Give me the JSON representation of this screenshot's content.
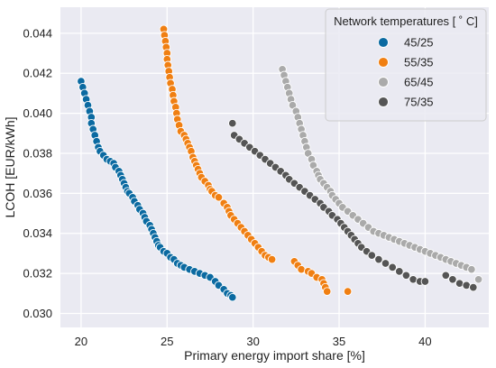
{
  "chart_data": {
    "type": "scatter",
    "title": "",
    "xlabel": "Primary energy import share [%]",
    "ylabel": "LCOH [EUR/kWh]",
    "xlim": [
      18.8,
      43.7
    ],
    "ylim": [
      0.0293,
      0.0453
    ],
    "xticks": [
      20,
      25,
      30,
      35,
      40
    ],
    "yticks": [
      0.03,
      0.032,
      0.034,
      0.036,
      0.038,
      0.04,
      0.042,
      0.044
    ],
    "xtick_labels": [
      "20",
      "25",
      "30",
      "35",
      "40"
    ],
    "ytick_labels": [
      "0.030",
      "0.032",
      "0.034",
      "0.036",
      "0.038",
      "0.040",
      "0.042",
      "0.044"
    ],
    "grid": true,
    "background": "#EAEAF2",
    "legend": {
      "title": "Network temperatures [$^\\circ$C]",
      "title_display": "Network temperatures [ ˚ C]",
      "placement": "top-right"
    },
    "series": [
      {
        "name": "45/25",
        "color": "#0B6AA1",
        "points": [
          [
            20.0,
            0.0416
          ],
          [
            20.1,
            0.0413
          ],
          [
            20.2,
            0.041
          ],
          [
            20.3,
            0.0407
          ],
          [
            20.4,
            0.0404
          ],
          [
            20.5,
            0.0401
          ],
          [
            20.6,
            0.0398
          ],
          [
            20.6,
            0.0395
          ],
          [
            20.7,
            0.0392
          ],
          [
            20.8,
            0.0389
          ],
          [
            20.9,
            0.0386
          ],
          [
            21.0,
            0.0383
          ],
          [
            21.1,
            0.0381
          ],
          [
            21.3,
            0.0379
          ],
          [
            21.5,
            0.0377
          ],
          [
            21.7,
            0.0376
          ],
          [
            21.9,
            0.0375
          ],
          [
            22.0,
            0.0373
          ],
          [
            22.2,
            0.0371
          ],
          [
            22.3,
            0.0369
          ],
          [
            22.4,
            0.0367
          ],
          [
            22.5,
            0.0365
          ],
          [
            22.6,
            0.0363
          ],
          [
            22.7,
            0.0361
          ],
          [
            22.8,
            0.036
          ],
          [
            23.0,
            0.0358
          ],
          [
            23.1,
            0.0356
          ],
          [
            23.3,
            0.0354
          ],
          [
            23.4,
            0.0352
          ],
          [
            23.6,
            0.035
          ],
          [
            23.7,
            0.0348
          ],
          [
            23.8,
            0.0346
          ],
          [
            24.0,
            0.0344
          ],
          [
            24.1,
            0.0342
          ],
          [
            24.2,
            0.034
          ],
          [
            24.3,
            0.0338
          ],
          [
            24.4,
            0.0336
          ],
          [
            24.5,
            0.0334
          ],
          [
            24.6,
            0.0333
          ],
          [
            24.8,
            0.0331
          ],
          [
            25.0,
            0.033
          ],
          [
            25.2,
            0.0328
          ],
          [
            25.4,
            0.0327
          ],
          [
            25.6,
            0.0325
          ],
          [
            25.8,
            0.0324
          ],
          [
            26.0,
            0.0323
          ],
          [
            26.3,
            0.0322
          ],
          [
            26.6,
            0.0321
          ],
          [
            26.9,
            0.032
          ],
          [
            27.2,
            0.0319
          ],
          [
            27.5,
            0.0318
          ],
          [
            27.8,
            0.0316
          ],
          [
            28.0,
            0.0314
          ],
          [
            28.3,
            0.0312
          ],
          [
            28.5,
            0.031
          ],
          [
            28.7,
            0.0309
          ],
          [
            28.8,
            0.0308
          ]
        ]
      },
      {
        "name": "55/35",
        "color": "#F07F12",
        "points": [
          [
            24.8,
            0.0442
          ],
          [
            24.85,
            0.0439
          ],
          [
            24.9,
            0.0436
          ],
          [
            24.95,
            0.0433
          ],
          [
            25.0,
            0.043
          ],
          [
            25.0,
            0.0427
          ],
          [
            25.05,
            0.0424
          ],
          [
            25.1,
            0.0421
          ],
          [
            25.15,
            0.0418
          ],
          [
            25.2,
            0.0415
          ],
          [
            25.3,
            0.0412
          ],
          [
            25.35,
            0.0409
          ],
          [
            25.4,
            0.0406
          ],
          [
            25.5,
            0.0403
          ],
          [
            25.55,
            0.04
          ],
          [
            25.6,
            0.0397
          ],
          [
            25.7,
            0.0394
          ],
          [
            25.8,
            0.0391
          ],
          [
            26.0,
            0.0389
          ],
          [
            26.1,
            0.0387
          ],
          [
            26.2,
            0.0385
          ],
          [
            26.3,
            0.0383
          ],
          [
            26.4,
            0.0381
          ],
          [
            26.5,
            0.0378
          ],
          [
            26.6,
            0.0376
          ],
          [
            26.7,
            0.0374
          ],
          [
            26.8,
            0.0372
          ],
          [
            26.9,
            0.037
          ],
          [
            27.0,
            0.0368
          ],
          [
            27.2,
            0.0366
          ],
          [
            27.4,
            0.0364
          ],
          [
            27.5,
            0.0362
          ],
          [
            27.6,
            0.0361
          ],
          [
            27.8,
            0.0359
          ],
          [
            28.0,
            0.0358
          ],
          [
            28.3,
            0.0355
          ],
          [
            28.5,
            0.0353
          ],
          [
            28.6,
            0.0351
          ],
          [
            28.7,
            0.0349
          ],
          [
            28.9,
            0.0347
          ],
          [
            29.1,
            0.0345
          ],
          [
            29.3,
            0.0343
          ],
          [
            29.5,
            0.0341
          ],
          [
            29.7,
            0.0339
          ],
          [
            29.9,
            0.0337
          ],
          [
            30.1,
            0.0335
          ],
          [
            30.3,
            0.0333
          ],
          [
            30.5,
            0.0331
          ],
          [
            30.7,
            0.0329
          ],
          [
            30.9,
            0.0328
          ],
          [
            31.1,
            0.0327
          ],
          [
            32.4,
            0.0326
          ],
          [
            32.6,
            0.0324
          ],
          [
            32.8,
            0.0322
          ],
          [
            33.2,
            0.0321
          ],
          [
            33.4,
            0.032
          ],
          [
            33.7,
            0.0318
          ],
          [
            34.0,
            0.0317
          ],
          [
            34.1,
            0.0315
          ],
          [
            34.2,
            0.0313
          ],
          [
            34.3,
            0.0311
          ],
          [
            35.5,
            0.0311
          ]
        ]
      },
      {
        "name": "65/45",
        "color": "#AAAAAA",
        "points": [
          [
            31.7,
            0.0422
          ],
          [
            31.8,
            0.0419
          ],
          [
            31.9,
            0.0416
          ],
          [
            32.0,
            0.0413
          ],
          [
            32.1,
            0.041
          ],
          [
            32.2,
            0.0407
          ],
          [
            32.3,
            0.0404
          ],
          [
            32.5,
            0.0401
          ],
          [
            32.6,
            0.0398
          ],
          [
            32.7,
            0.0395
          ],
          [
            32.8,
            0.0392
          ],
          [
            32.9,
            0.0389
          ],
          [
            33.0,
            0.0386
          ],
          [
            33.1,
            0.0383
          ],
          [
            33.2,
            0.038
          ],
          [
            33.4,
            0.0377
          ],
          [
            33.5,
            0.0374
          ],
          [
            33.7,
            0.0371
          ],
          [
            33.8,
            0.0369
          ],
          [
            33.9,
            0.0367
          ],
          [
            34.1,
            0.0365
          ],
          [
            34.3,
            0.0363
          ],
          [
            34.5,
            0.0361
          ],
          [
            34.6,
            0.0359
          ],
          [
            34.8,
            0.0357
          ],
          [
            35.0,
            0.0355
          ],
          [
            35.2,
            0.0353
          ],
          [
            35.5,
            0.0351
          ],
          [
            35.8,
            0.0349
          ],
          [
            36.1,
            0.0347
          ],
          [
            36.4,
            0.0345
          ],
          [
            36.7,
            0.0343
          ],
          [
            37.0,
            0.0341
          ],
          [
            37.3,
            0.034
          ],
          [
            37.6,
            0.0339
          ],
          [
            37.9,
            0.0338
          ],
          [
            38.2,
            0.0337
          ],
          [
            38.5,
            0.0336
          ],
          [
            38.8,
            0.0335
          ],
          [
            39.1,
            0.0334
          ],
          [
            39.4,
            0.0333
          ],
          [
            39.7,
            0.0332
          ],
          [
            40.0,
            0.0331
          ],
          [
            40.3,
            0.033
          ],
          [
            40.6,
            0.0329
          ],
          [
            40.9,
            0.0328
          ],
          [
            41.2,
            0.0327
          ],
          [
            41.5,
            0.0326
          ],
          [
            41.8,
            0.0325
          ],
          [
            42.1,
            0.0324
          ],
          [
            42.4,
            0.0323
          ],
          [
            42.7,
            0.0322
          ],
          [
            43.1,
            0.0317
          ]
        ]
      },
      {
        "name": "75/35",
        "color": "#555555",
        "points": [
          [
            28.8,
            0.0395
          ],
          [
            28.9,
            0.0389
          ],
          [
            29.2,
            0.0387
          ],
          [
            29.5,
            0.0385
          ],
          [
            29.8,
            0.0383
          ],
          [
            30.1,
            0.0381
          ],
          [
            30.4,
            0.0379
          ],
          [
            30.7,
            0.0377
          ],
          [
            31.0,
            0.0375
          ],
          [
            31.3,
            0.0373
          ],
          [
            31.6,
            0.0371
          ],
          [
            31.9,
            0.0369
          ],
          [
            32.1,
            0.0367
          ],
          [
            32.4,
            0.0365
          ],
          [
            32.7,
            0.0363
          ],
          [
            33.0,
            0.0361
          ],
          [
            33.3,
            0.0359
          ],
          [
            33.6,
            0.0357
          ],
          [
            33.9,
            0.0355
          ],
          [
            34.1,
            0.0353
          ],
          [
            34.4,
            0.0351
          ],
          [
            34.6,
            0.0349
          ],
          [
            34.9,
            0.0347
          ],
          [
            35.1,
            0.0345
          ],
          [
            35.3,
            0.0343
          ],
          [
            35.5,
            0.0341
          ],
          [
            35.7,
            0.0339
          ],
          [
            35.9,
            0.0337
          ],
          [
            36.1,
            0.0335
          ],
          [
            36.3,
            0.0333
          ],
          [
            36.6,
            0.0331
          ],
          [
            36.9,
            0.0329
          ],
          [
            37.3,
            0.0327
          ],
          [
            37.7,
            0.0325
          ],
          [
            38.1,
            0.0323
          ],
          [
            38.5,
            0.0321
          ],
          [
            38.9,
            0.0319
          ],
          [
            39.3,
            0.0317
          ],
          [
            39.7,
            0.0316
          ],
          [
            40.0,
            0.0316
          ],
          [
            41.2,
            0.0319
          ],
          [
            41.6,
            0.0317
          ],
          [
            42.0,
            0.0315
          ],
          [
            42.4,
            0.0314
          ],
          [
            42.8,
            0.0313
          ]
        ]
      }
    ]
  }
}
